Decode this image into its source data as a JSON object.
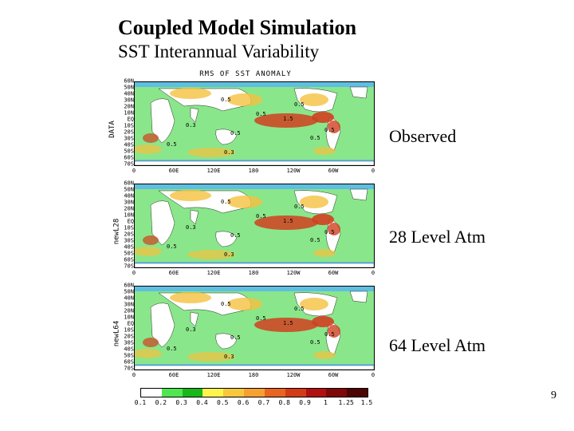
{
  "title": "Coupled Model Simulation",
  "subtitle": "SST Interannual Variability",
  "chart_title": "RMS OF SST ANOMALY",
  "page_number": "9",
  "side_labels": {
    "observed": "Observed",
    "l28": "28 Level Atm",
    "l64": "64 Level Atm"
  },
  "panels": [
    {
      "ylabel": "DATA"
    },
    {
      "ylabel": "newL28"
    },
    {
      "ylabel": "newL64"
    }
  ],
  "yticks": [
    "60N",
    "50N",
    "40N",
    "30N",
    "20N",
    "10N",
    "EQ",
    "10S",
    "20S",
    "30S",
    "40S",
    "50S",
    "60S",
    "70S"
  ],
  "xticks": [
    "0",
    "60E",
    "120E",
    "180",
    "120W",
    "60W",
    "0"
  ],
  "colorbar": {
    "colors": [
      "#ffffff",
      "#4fe64f",
      "#17b817",
      "#fff44a",
      "#f7c83a",
      "#f5a030",
      "#e86420",
      "#d33a18",
      "#b01010",
      "#800808",
      "#4d0404"
    ],
    "labels": [
      "0.1",
      "0.2",
      "0.3",
      "0.4",
      "0.5",
      "0.6",
      "0.7",
      "0.8",
      "0.9",
      "1",
      "1.25",
      "1.5"
    ]
  },
  "map": {
    "background_color": "#ffffff",
    "land_color": "#ffffff",
    "low_color": "#8ae68a",
    "mid_color": "#f5c040",
    "high_color": "#d04020",
    "ice_color": "#5fbfe0"
  },
  "contour_values": [
    "0.3",
    "0.5",
    "1.5"
  ]
}
